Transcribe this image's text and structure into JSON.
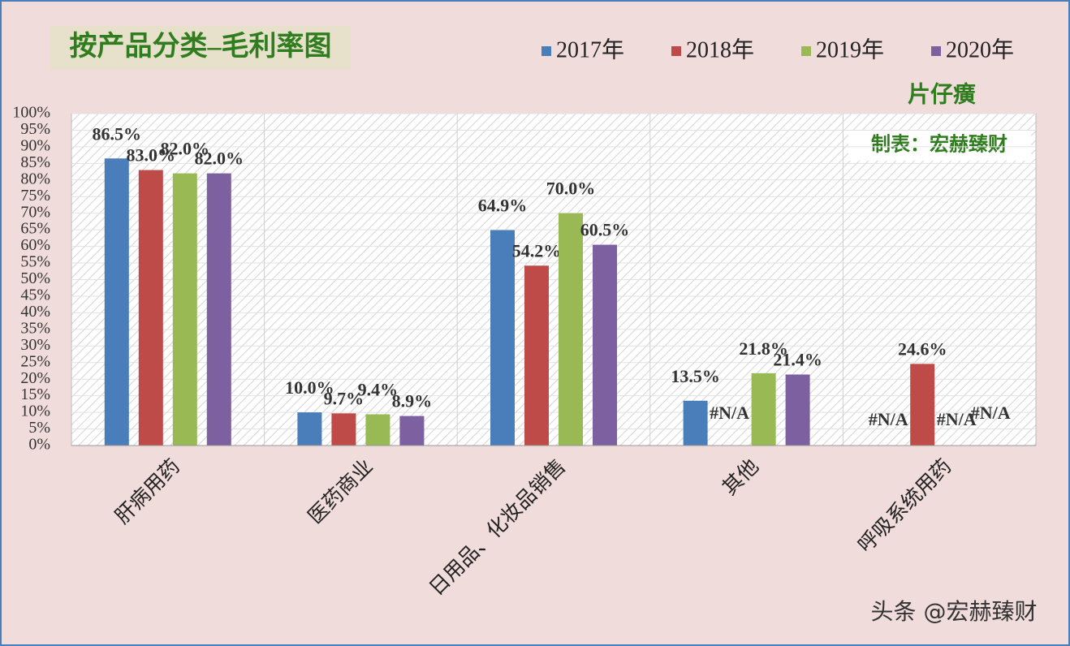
{
  "chart_data": {
    "type": "bar",
    "title": "按产品分类–毛利率图",
    "annotations": [
      "片仔癀",
      "制表：宏赫臻财"
    ],
    "categories": [
      "肝病用药",
      "医药商业",
      "日用品、化妆品销售",
      "其他",
      "呼吸系统用药"
    ],
    "series": [
      {
        "name": "2017年",
        "color": "#4a7ebb",
        "values": [
          86.5,
          10.0,
          64.9,
          13.5,
          null
        ],
        "value_labels": [
          "86.5%",
          "10.0%",
          "64.9%",
          "13.5%",
          "#N/A"
        ]
      },
      {
        "name": "2018年",
        "color": "#be4b48",
        "values": [
          83.0,
          9.7,
          54.2,
          null,
          24.6
        ],
        "value_labels": [
          "83.0%",
          "9.7%",
          "54.2%",
          "#N/A",
          "24.6%"
        ]
      },
      {
        "name": "2019年",
        "color": "#98b954",
        "values": [
          82.0,
          9.4,
          70.0,
          21.8,
          null
        ],
        "value_labels": [
          "82.0%",
          "9.4%",
          "70.0%",
          "21.8%",
          "#N/A"
        ]
      },
      {
        "name": "2020年",
        "color": "#7d60a0",
        "values": [
          82.0,
          8.9,
          60.5,
          21.4,
          null
        ],
        "value_labels": [
          "82.0%",
          "8.9%",
          "60.5%",
          "21.4%",
          "#N/A"
        ]
      }
    ],
    "ylim": [
      0,
      100
    ],
    "yticks": [
      {
        "value": 0,
        "label": "0%"
      },
      {
        "value": 5,
        "label": "5%"
      },
      {
        "value": 10,
        "label": "10%"
      },
      {
        "value": 15,
        "label": "15%"
      },
      {
        "value": 20,
        "label": "20%"
      },
      {
        "value": 25,
        "label": "25%"
      },
      {
        "value": 30,
        "label": "30%"
      },
      {
        "value": 35,
        "label": "35%"
      },
      {
        "value": 40,
        "label": "40%"
      },
      {
        "value": 45,
        "label": "45%"
      },
      {
        "value": 50,
        "label": "50%"
      },
      {
        "value": 55,
        "label": "55%"
      },
      {
        "value": 60,
        "label": "60%"
      },
      {
        "value": 65,
        "label": "65%"
      },
      {
        "value": 70,
        "label": "70%"
      },
      {
        "value": 75,
        "label": "75%"
      },
      {
        "value": 80,
        "label": "80%"
      },
      {
        "value": 85,
        "label": "85%"
      },
      {
        "value": 90,
        "label": "90%"
      },
      {
        "value": 95,
        "label": "95%"
      },
      {
        "value": 100,
        "label": "100%"
      }
    ],
    "grid": true
  },
  "watermark": "头条 @宏赫臻财"
}
